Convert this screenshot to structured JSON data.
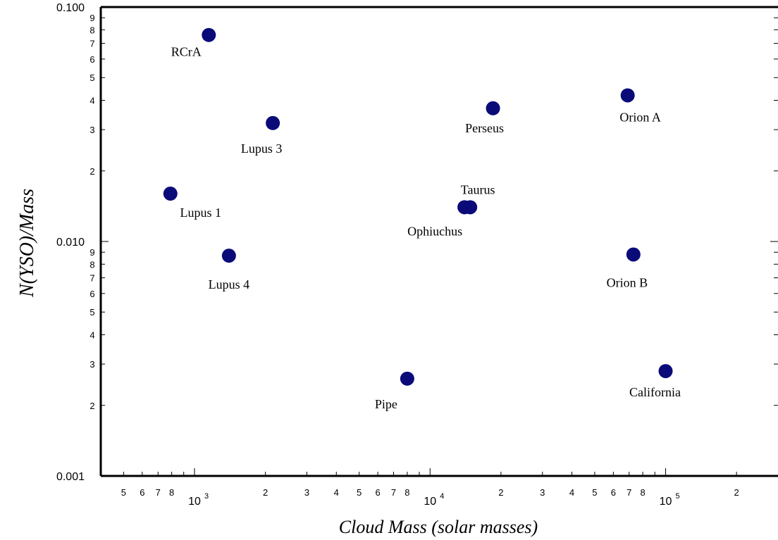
{
  "chart_data": {
    "type": "scatter",
    "title": "",
    "xlabel": "Cloud Mass (solar masses)",
    "ylabel": "N(YSO)/Mass",
    "xscale": "log",
    "yscale": "log",
    "xlim": [
      400,
      300000
    ],
    "ylim": [
      0.001,
      0.1
    ],
    "grid": false,
    "marker_color": "#0a0a78",
    "y_tick_labels": [
      "0.001",
      "0.010",
      "0.100"
    ],
    "y_minor_labels": [
      "2",
      "3",
      "4",
      "5",
      "6",
      "7",
      "8",
      "9"
    ],
    "x_minor_labels": [
      "2",
      "3",
      "4",
      "5",
      "6",
      "7",
      "8"
    ],
    "x_decade_base": "10",
    "x_decades": [
      {
        "value": 1000,
        "exp": "3"
      },
      {
        "value": 10000,
        "exp": "4"
      },
      {
        "value": 100000,
        "exp": "5"
      }
    ],
    "points": [
      {
        "name": "RCrA",
        "x": 1150,
        "y": 0.076
      },
      {
        "name": "Lupus 3",
        "x": 2150,
        "y": 0.032
      },
      {
        "name": "Lupus 1",
        "x": 790,
        "y": 0.016
      },
      {
        "name": "Lupus 4",
        "x": 1400,
        "y": 0.0087
      },
      {
        "name": "Pipe",
        "x": 8000,
        "y": 0.0026
      },
      {
        "name": "Ophiuchus",
        "x": 14000,
        "y": 0.014
      },
      {
        "name": "Taurus",
        "x": 14800,
        "y": 0.014
      },
      {
        "name": "Perseus",
        "x": 18500,
        "y": 0.037
      },
      {
        "name": "Orion A",
        "x": 69000,
        "y": 0.042
      },
      {
        "name": "Orion B",
        "x": 73000,
        "y": 0.0088
      },
      {
        "name": "California",
        "x": 100000,
        "y": 0.0028
      }
    ]
  }
}
